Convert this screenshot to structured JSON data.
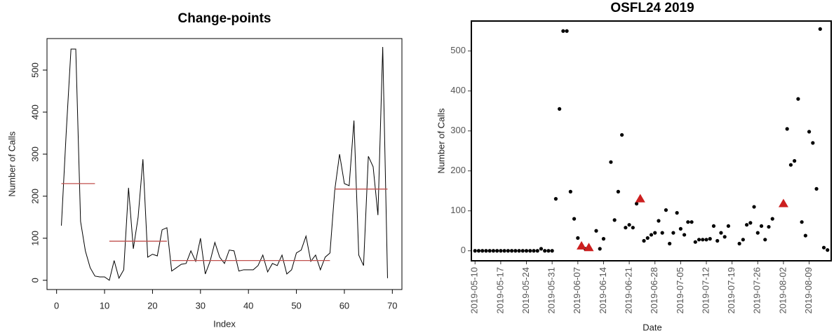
{
  "chart_data": [
    {
      "type": "line",
      "title": "Change-points",
      "xlabel": "Index",
      "ylabel": "Number of Calls",
      "x": [
        1,
        2,
        3,
        4,
        5,
        6,
        7,
        8,
        9,
        10,
        11,
        12,
        13,
        14,
        15,
        16,
        17,
        18,
        19,
        20,
        21,
        22,
        23,
        24,
        25,
        26,
        27,
        28,
        29,
        30,
        31,
        32,
        33,
        34,
        35,
        36,
        37,
        38,
        39,
        40,
        41,
        42,
        43,
        44,
        45,
        46,
        47,
        48,
        49,
        50,
        51,
        52,
        53,
        54,
        55,
        56,
        57,
        58,
        59,
        60,
        61,
        62,
        63,
        64,
        65,
        66,
        67,
        68,
        69
      ],
      "values": [
        130,
        350,
        550,
        550,
        140,
        70,
        30,
        10,
        8,
        8,
        0,
        47,
        5,
        25,
        220,
        75,
        150,
        288,
        55,
        62,
        58,
        120,
        125,
        22,
        30,
        38,
        40,
        70,
        45,
        100,
        15,
        45,
        90,
        55,
        40,
        72,
        70,
        22,
        25,
        25,
        25,
        35,
        60,
        20,
        40,
        35,
        60,
        15,
        25,
        65,
        72,
        105,
        45,
        60,
        25,
        55,
        65,
        215,
        300,
        230,
        225,
        380,
        60,
        35,
        295,
        270,
        155,
        555,
        5
      ],
      "color": "#000000",
      "segments": [
        {
          "x": [
            1,
            8
          ],
          "value": 230
        },
        {
          "x": [
            11,
            23
          ],
          "value": 93
        },
        {
          "x": [
            24,
            57
          ],
          "value": 47
        },
        {
          "x": [
            58,
            69
          ],
          "value": 217
        }
      ],
      "segment_color": "#c0504d",
      "xlim": [
        -2,
        72
      ],
      "xticks": [
        0,
        10,
        20,
        30,
        40,
        50,
        60,
        70
      ],
      "ylim": [
        -22,
        575
      ],
      "yticks": [
        0,
        100,
        200,
        300,
        400,
        500
      ]
    },
    {
      "type": "scatter",
      "title": "OSFL24 2019",
      "xlabel": "Date",
      "ylabel": "Number of Calls",
      "x": [
        "2019-05-10",
        "2019-05-11",
        "2019-05-12",
        "2019-05-13",
        "2019-05-14",
        "2019-05-15",
        "2019-05-16",
        "2019-05-17",
        "2019-05-18",
        "2019-05-19",
        "2019-05-20",
        "2019-05-21",
        "2019-05-22",
        "2019-05-23",
        "2019-05-24",
        "2019-05-25",
        "2019-05-26",
        "2019-05-27",
        "2019-05-28",
        "2019-05-29",
        "2019-05-30",
        "2019-05-31",
        "2019-06-01",
        "2019-06-02",
        "2019-06-03",
        "2019-06-04",
        "2019-06-05",
        "2019-06-06",
        "2019-06-07",
        "2019-06-08",
        "2019-06-09",
        "2019-06-10",
        "2019-06-11",
        "2019-06-12",
        "2019-06-13",
        "2019-06-14",
        "2019-06-15",
        "2019-06-16",
        "2019-06-17",
        "2019-06-18",
        "2019-06-19",
        "2019-06-20",
        "2019-06-21",
        "2019-06-22",
        "2019-06-23",
        "2019-06-24",
        "2019-06-25",
        "2019-06-26",
        "2019-06-27",
        "2019-06-28",
        "2019-06-29",
        "2019-06-30",
        "2019-07-01",
        "2019-07-02",
        "2019-07-03",
        "2019-07-04",
        "2019-07-05",
        "2019-07-06",
        "2019-07-07",
        "2019-07-08",
        "2019-07-09",
        "2019-07-10",
        "2019-07-11",
        "2019-07-12",
        "2019-07-13",
        "2019-07-14",
        "2019-07-15",
        "2019-07-16",
        "2019-07-17",
        "2019-07-18",
        "2019-07-19",
        "2019-07-20",
        "2019-07-21",
        "2019-07-22",
        "2019-07-23",
        "2019-07-24",
        "2019-07-25",
        "2019-07-26",
        "2019-07-27",
        "2019-07-28",
        "2019-07-29",
        "2019-07-30",
        "2019-07-31",
        "2019-08-01",
        "2019-08-02",
        "2019-08-03",
        "2019-08-04",
        "2019-08-05",
        "2019-08-06",
        "2019-08-07",
        "2019-08-08",
        "2019-08-09",
        "2019-08-10",
        "2019-08-11",
        "2019-08-12",
        "2019-08-13",
        "2019-08-14"
      ],
      "series": [
        {
          "color": "#000000",
          "marker": "circle",
          "values": [
            0,
            0,
            0,
            0,
            0,
            0,
            0,
            0,
            0,
            0,
            0,
            0,
            0,
            0,
            0,
            0,
            0,
            0,
            5,
            0,
            0,
            0,
            130,
            355,
            550,
            550,
            148,
            80,
            32,
            12,
            5,
            8,
            null,
            50,
            5,
            30,
            null,
            222,
            77,
            148,
            290,
            58,
            65,
            58,
            118,
            130,
            25,
            32,
            40,
            45,
            75,
            45,
            102,
            18,
            45,
            95,
            55,
            40,
            72,
            72,
            22,
            28,
            28,
            28,
            30,
            62,
            25,
            45,
            35,
            62,
            null,
            null,
            18,
            28,
            65,
            70,
            110,
            45,
            62,
            28,
            60,
            80,
            null,
            null,
            118,
            305,
            215,
            225,
            380,
            72,
            38,
            298,
            270,
            155,
            555,
            8,
            2
          ]
        },
        {
          "color": "#cc1f1f",
          "marker": "triangle",
          "values": [
            null,
            null,
            null,
            null,
            null,
            null,
            null,
            null,
            null,
            null,
            null,
            null,
            null,
            null,
            null,
            null,
            null,
            null,
            null,
            null,
            null,
            null,
            null,
            null,
            null,
            null,
            null,
            null,
            null,
            12,
            null,
            8,
            null,
            null,
            null,
            null,
            null,
            null,
            null,
            null,
            null,
            null,
            null,
            null,
            null,
            130,
            null,
            null,
            null,
            null,
            null,
            null,
            null,
            null,
            null,
            null,
            null,
            null,
            null,
            null,
            null,
            null,
            null,
            null,
            null,
            null,
            null,
            null,
            null,
            null,
            null,
            null,
            null,
            null,
            null,
            null,
            null,
            null,
            null,
            null,
            null,
            null,
            null,
            null,
            118,
            null,
            null,
            null,
            null,
            null,
            null,
            null,
            null,
            null,
            null,
            null,
            null
          ]
        }
      ],
      "xlim": [
        "2019-05-09",
        "2019-08-15"
      ],
      "xticks": [
        "2019-05-10",
        "2019-05-17",
        "2019-05-24",
        "2019-05-31",
        "2019-06-07",
        "2019-06-14",
        "2019-06-21",
        "2019-06-28",
        "2019-07-05",
        "2019-07-12",
        "2019-07-19",
        "2019-07-26",
        "2019-08-02",
        "2019-08-09"
      ],
      "ylim": [
        -25,
        575
      ],
      "yticks": [
        0,
        100,
        200,
        300,
        400,
        500
      ]
    }
  ]
}
